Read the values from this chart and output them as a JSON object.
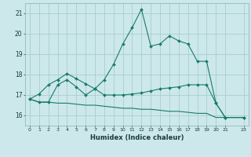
{
  "title": "",
  "xlabel": "Humidex (Indice chaleur)",
  "background_color": "#cce8ea",
  "grid_color": "#aacdd0",
  "line_color": "#1a7a6e",
  "xlim": [
    -0.5,
    23.5
  ],
  "ylim": [
    15.5,
    21.5
  ],
  "yticks": [
    16,
    17,
    18,
    19,
    20,
    21
  ],
  "xticks": [
    0,
    1,
    2,
    3,
    4,
    5,
    6,
    7,
    8,
    9,
    10,
    11,
    12,
    13,
    14,
    15,
    16,
    17,
    18,
    19,
    20,
    21,
    23
  ],
  "series1_x": [
    0,
    1,
    2,
    3,
    4,
    5,
    6,
    7,
    8,
    9,
    10,
    11,
    12,
    13,
    14,
    15,
    16,
    17,
    18,
    19,
    20,
    21,
    23
  ],
  "series1_y": [
    16.8,
    17.05,
    17.5,
    17.75,
    18.05,
    17.8,
    17.55,
    17.3,
    17.75,
    18.5,
    19.5,
    20.3,
    21.2,
    19.4,
    19.5,
    19.9,
    19.65,
    19.5,
    18.65,
    18.65,
    16.6,
    15.9,
    15.9
  ],
  "series2_x": [
    0,
    1,
    2,
    3,
    4,
    5,
    6,
    7,
    8,
    9,
    10,
    11,
    12,
    13,
    14,
    15,
    16,
    17,
    18,
    19,
    20,
    21,
    23
  ],
  "series2_y": [
    16.8,
    16.65,
    16.65,
    17.5,
    17.75,
    17.4,
    17.0,
    17.3,
    17.0,
    17.0,
    17.0,
    17.05,
    17.1,
    17.2,
    17.3,
    17.35,
    17.4,
    17.5,
    17.5,
    17.5,
    16.6,
    15.9,
    15.9
  ],
  "series3_x": [
    0,
    1,
    2,
    3,
    4,
    5,
    6,
    7,
    8,
    9,
    10,
    11,
    12,
    13,
    14,
    15,
    16,
    17,
    18,
    19,
    20,
    21,
    23
  ],
  "series3_y": [
    16.8,
    16.65,
    16.65,
    16.6,
    16.6,
    16.55,
    16.5,
    16.5,
    16.45,
    16.4,
    16.35,
    16.35,
    16.3,
    16.3,
    16.25,
    16.2,
    16.2,
    16.15,
    16.1,
    16.1,
    15.9,
    15.9,
    15.9
  ]
}
